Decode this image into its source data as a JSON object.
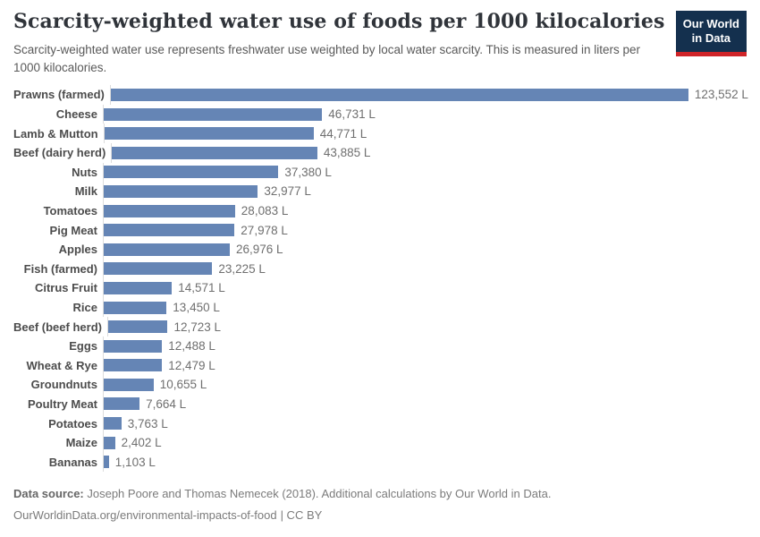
{
  "header": {
    "title": "Scarcity-weighted water use of foods per 1000 kilocalories",
    "subtitle": "Scarcity-weighted water use represents freshwater use weighted by local water scarcity. This is measured in liters per 1000 kilocalories.",
    "logo": {
      "line1": "Our World",
      "line2": "in Data"
    }
  },
  "chart_data": {
    "type": "bar",
    "orientation": "horizontal",
    "title": "Scarcity-weighted water use of foods per 1000 kilocalories",
    "unit": "liters per 1000 kilocalories",
    "grid": false,
    "xlim": [
      0,
      123552
    ],
    "bar_color": "#6585b5",
    "categories": [
      "Prawns (farmed)",
      "Cheese",
      "Lamb & Mutton",
      "Beef (dairy herd)",
      "Nuts",
      "Milk",
      "Tomatoes",
      "Pig Meat",
      "Apples",
      "Fish (farmed)",
      "Citrus Fruit",
      "Rice",
      "Beef (beef herd)",
      "Eggs",
      "Wheat & Rye",
      "Groundnuts",
      "Poultry Meat",
      "Potatoes",
      "Maize",
      "Bananas"
    ],
    "values": [
      123552,
      46731,
      44771,
      43885,
      37380,
      32977,
      28083,
      27978,
      26976,
      23225,
      14571,
      13450,
      12723,
      12488,
      12479,
      10655,
      7664,
      3763,
      2402,
      1103
    ],
    "value_labels": [
      "123,552 L",
      "46,731 L",
      "44,771 L",
      "43,885 L",
      "37,380 L",
      "32,977 L",
      "28,083 L",
      "27,978 L",
      "26,976 L",
      "23,225 L",
      "14,571 L",
      "13,450 L",
      "12,723 L",
      "12,488 L",
      "12,479 L",
      "10,655 L",
      "7,664 L",
      "3,763 L",
      "2,402 L",
      "1,103 L"
    ]
  },
  "footer": {
    "datasource_label": "Data source:",
    "datasource_text": " Joseph Poore and Thomas Nemecek (2018). Additional calculations by Our World in Data.",
    "link": "OurWorldinData.org/environmental-impacts-of-food",
    "license": "| CC BY"
  },
  "colors": {
    "bar": "#6585b5",
    "axis": "#dcdcdc",
    "logo_background": "#14304e",
    "logo_stripe": "#cf2428",
    "title_text": "#30343a",
    "subtitle_text": "#595959",
    "category_label": "#4c4c4c",
    "value_label": "#6f6f6f",
    "footer_text": "#7b7b7b"
  }
}
